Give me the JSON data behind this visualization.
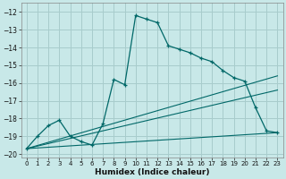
{
  "xlabel": "Humidex (Indice chaleur)",
  "xlim": [
    -0.5,
    23.5
  ],
  "ylim": [
    -20.2,
    -11.5
  ],
  "yticks": [
    -20,
    -19,
    -18,
    -17,
    -16,
    -15,
    -14,
    -13,
    -12
  ],
  "xticks": [
    0,
    1,
    2,
    3,
    4,
    5,
    6,
    7,
    8,
    9,
    10,
    11,
    12,
    13,
    14,
    15,
    16,
    17,
    18,
    19,
    20,
    21,
    22,
    23
  ],
  "bg_color": "#c8e8e8",
  "grid_color": "#a8cccc",
  "line_color": "#006868",
  "line1_x": [
    0,
    1,
    2,
    3,
    4,
    5,
    6,
    7,
    8,
    9,
    10,
    11,
    12,
    13,
    14,
    15,
    16,
    17,
    18,
    19,
    20,
    21,
    22,
    23
  ],
  "line1_y": [
    -19.7,
    -19.0,
    -18.4,
    -18.1,
    -19.0,
    -19.3,
    -19.5,
    -18.3,
    -15.8,
    -16.1,
    -12.2,
    -12.4,
    -12.6,
    -13.9,
    -14.1,
    -14.3,
    -14.6,
    -14.8,
    -15.3,
    -15.7,
    -15.9,
    -17.4,
    -18.7,
    -18.8
  ],
  "line3_x": [
    0,
    23
  ],
  "line3_y": [
    -19.7,
    -15.6
  ],
  "line4_x": [
    0,
    23
  ],
  "line4_y": [
    -19.7,
    -16.4
  ],
  "line5_x": [
    0,
    23
  ],
  "line5_y": [
    -19.7,
    -18.8
  ],
  "figsize": [
    3.2,
    2.0
  ],
  "dpi": 100
}
